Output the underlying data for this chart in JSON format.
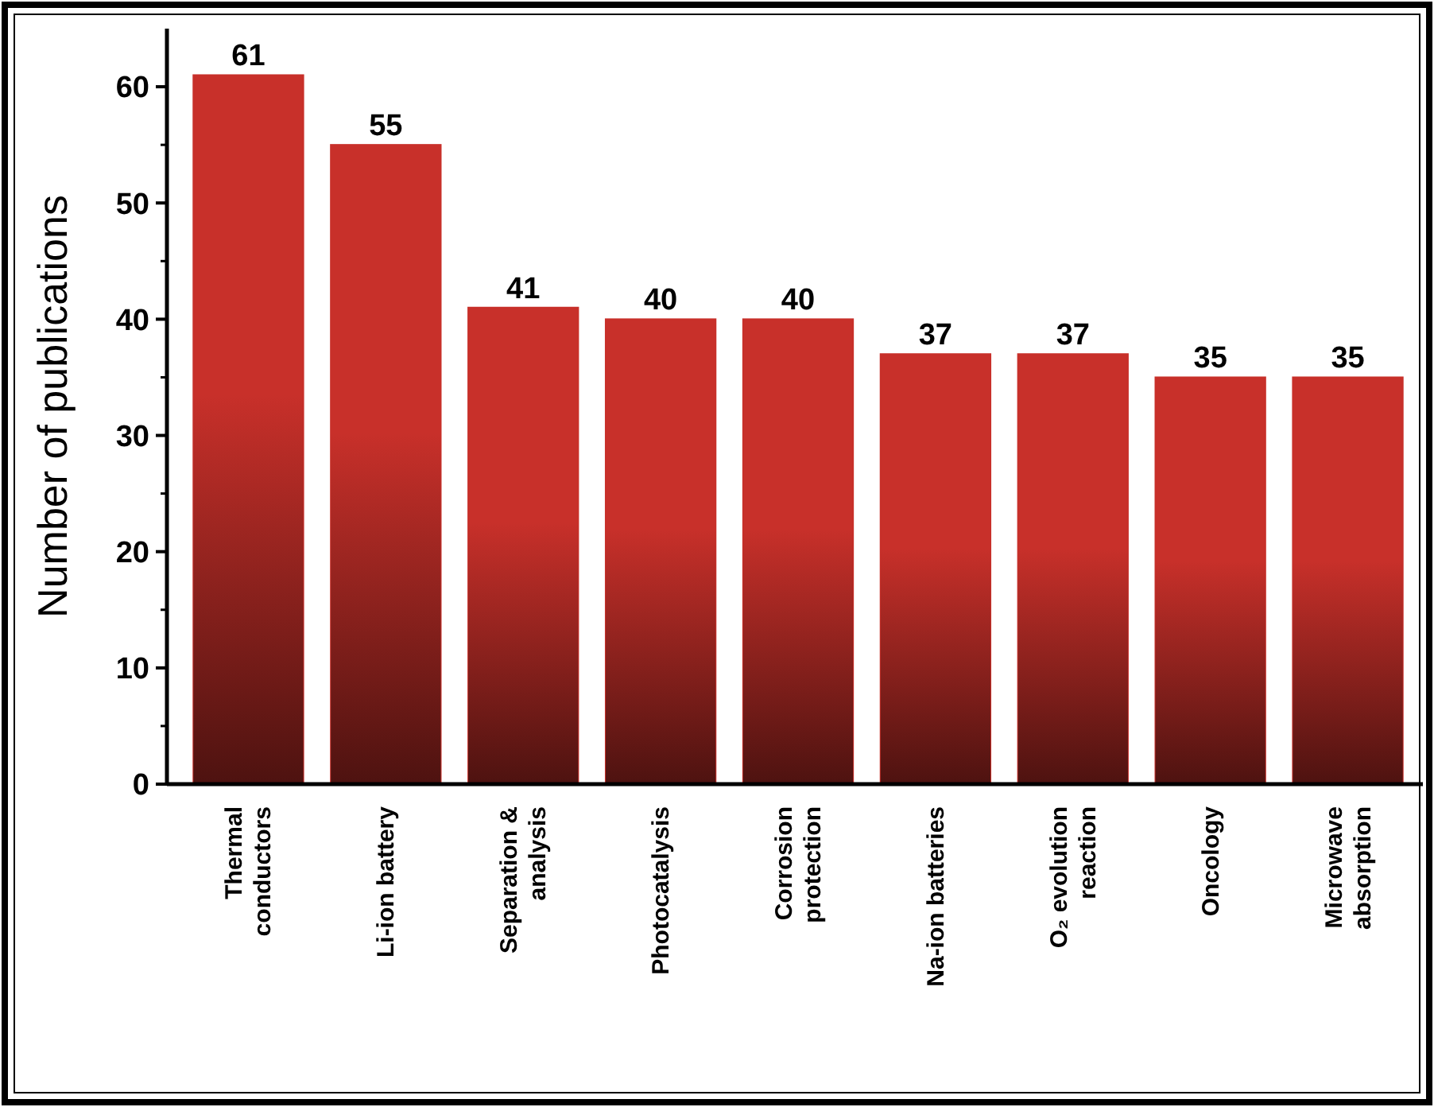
{
  "chart_data": {
    "type": "bar",
    "ylabel": "Number of publications",
    "categories": [
      "Thermal\nconductors",
      "Li-ion battery",
      "Separation &\nanalysis",
      "Photocatalysis",
      "Corrosion\nprotection",
      "Na-ion batteries",
      "O₂ evolution\nreaction",
      "Oncology",
      "Microwave\nabsorption"
    ],
    "values": [
      61,
      55,
      41,
      40,
      40,
      37,
      37,
      35,
      35
    ],
    "color": "#c8302a",
    "ylim": [
      0,
      65
    ],
    "yticks": [
      0,
      10,
      20,
      30,
      40,
      50,
      60
    ],
    "data_labels": true,
    "grid": false
  }
}
